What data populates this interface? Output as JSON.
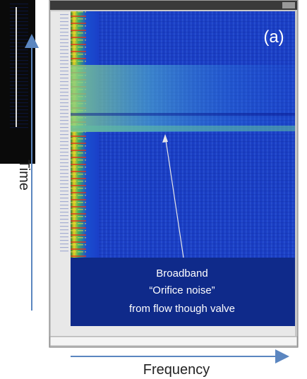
{
  "panel_label": "(a)",
  "annotation": {
    "lines": [
      "Broadband",
      "“Orifice noise”",
      "from flow though valve"
    ]
  },
  "axes": {
    "y_label": "Time",
    "x_label": "Frequency"
  }
}
